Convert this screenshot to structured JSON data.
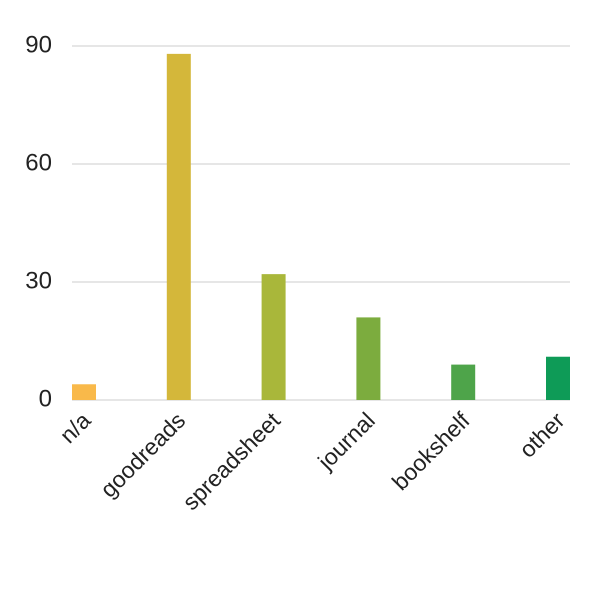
{
  "chart_data": {
    "type": "bar",
    "categories": [
      "n/a",
      "goodreads",
      "spreadsheet",
      "journal",
      "bookshelf",
      "other"
    ],
    "values": [
      4,
      88,
      32,
      21,
      9,
      11
    ],
    "colors": [
      "#f9b94a",
      "#d4b73a",
      "#a9b73a",
      "#7cac3e",
      "#4ea44a",
      "#0e9b57"
    ],
    "ylim": [
      0,
      90
    ],
    "yticks": [
      0,
      30,
      60,
      90
    ],
    "grid": true
  }
}
